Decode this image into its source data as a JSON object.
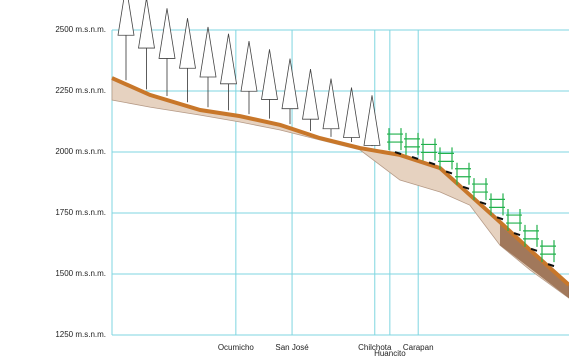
{
  "chart_data": {
    "type": "profile",
    "xlim": [
      0,
      100
    ],
    "ylim": [
      1250,
      2500
    ],
    "yticks": [
      {
        "value": 2500,
        "label": "2500 m.s.n.m."
      },
      {
        "value": 2250,
        "label": "2250 m.s.n.m."
      },
      {
        "value": 2000,
        "label": "2000 m.s.n.m."
      },
      {
        "value": 1750,
        "label": "1750 m.s.n.m."
      },
      {
        "value": 1500,
        "label": "1500 m.s.n.m."
      },
      {
        "value": 1250,
        "label": "1250 m.s.n.m."
      }
    ],
    "grid": true,
    "x": [
      0,
      8.3,
      19.3,
      28,
      36.8,
      45.5,
      54.3,
      63,
      71.8,
      78.3,
      84.9,
      91.5,
      100
    ],
    "series": [
      {
        "color": "#c8772a",
        "values": [
          2303,
          2234,
          2172,
          2147,
          2111,
          2057,
          2016,
          1988,
          1934,
          1824,
          1713,
          1598,
          1455
        ]
      },
      {
        "color": "#e6d2c0",
        "values": [
          2213,
          2184,
          2151,
          2123,
          2090,
          2049,
          2008,
          1885,
          1836,
          1782,
          1618,
          1516,
          1401
        ]
      }
    ],
    "places": [
      {
        "label": "Ocumicho",
        "x": 27.1
      },
      {
        "label": "San José",
        "x": 39.4
      },
      {
        "label": "Chilchota",
        "x": 57.5
      },
      {
        "label": "Huancito",
        "x": 60.8
      },
      {
        "label": "Carapan",
        "x": 67
      }
    ]
  }
}
